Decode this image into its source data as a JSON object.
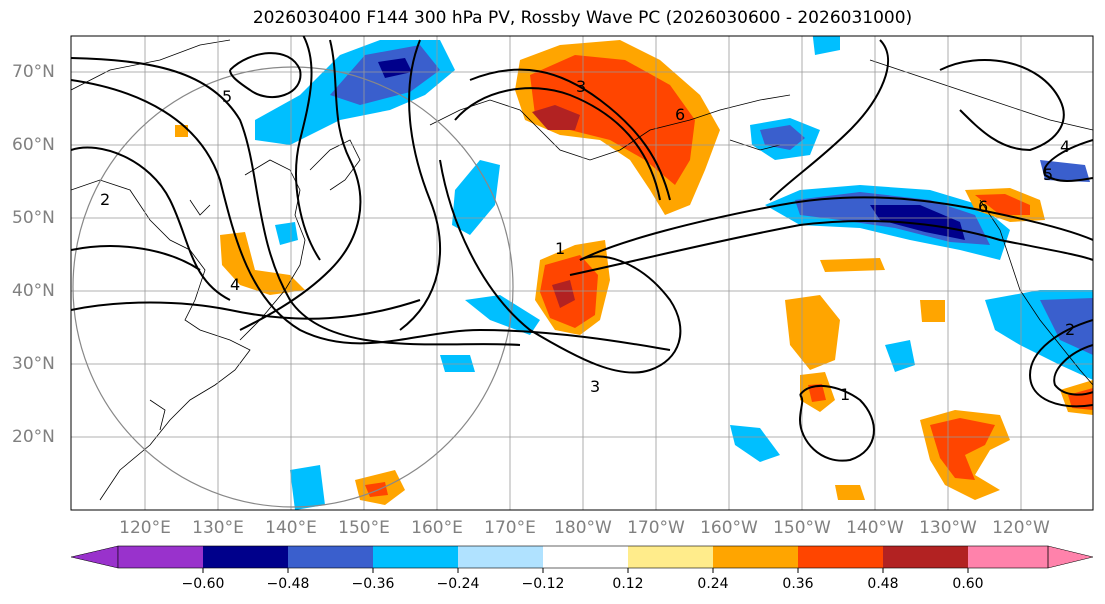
{
  "title": "2026030400 F144 300 hPa PV, Rossby Wave PC (2026030600 - 2026031000)",
  "lat_labels": [
    "70°N",
    "60°N",
    "50°N",
    "40°N",
    "30°N",
    "20°N"
  ],
  "lon_labels": [
    "120°E",
    "130°E",
    "140°E",
    "150°E",
    "160°E",
    "170°E",
    "180°W",
    "170°W",
    "160°W",
    "150°W",
    "140°W",
    "130°W",
    "120°W"
  ],
  "colorbar": {
    "tick_labels": [
      "−0.60",
      "−0.48",
      "−0.36",
      "−0.24",
      "−0.12",
      "0.12",
      "0.24",
      "0.36",
      "0.48",
      "0.60"
    ],
    "colors": [
      "#9932CC",
      "#00008B",
      "#3A5FCD",
      "#00BFFF",
      "#B0E2FF",
      "#FFFFFF",
      "#FFEC8B",
      "#FFA500",
      "#FF4500",
      "#B22222",
      "#FF82AB"
    ]
  },
  "contour_labels": [
    "1",
    "2",
    "3",
    "4",
    "5",
    "6",
    "3",
    "1",
    "2",
    "4",
    "5",
    "6"
  ]
}
